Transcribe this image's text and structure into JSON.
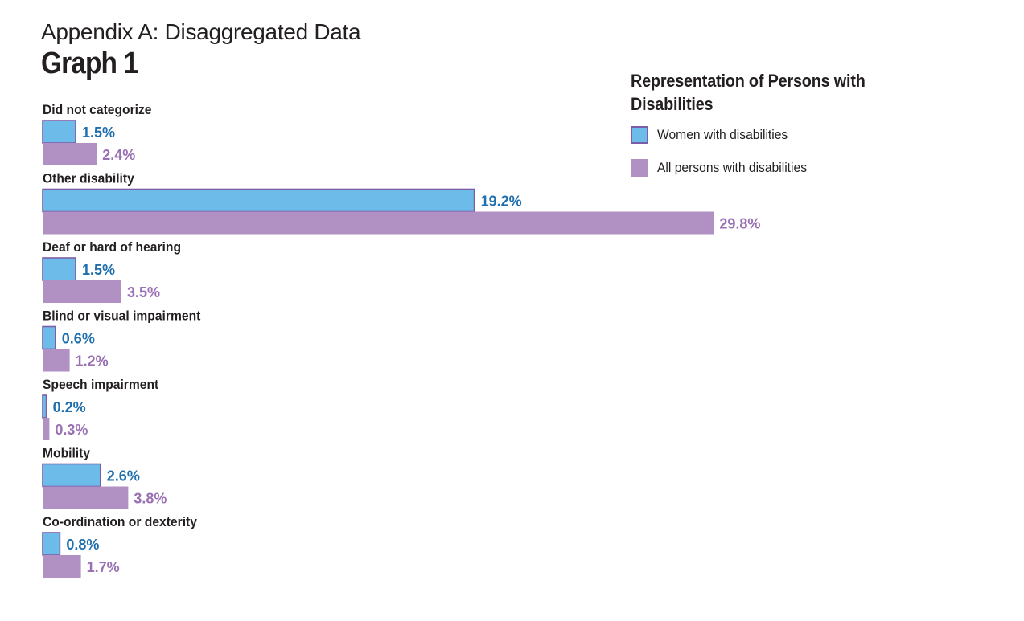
{
  "header": {
    "title": "Appendix A: Disaggregated Data",
    "subtitle": "Graph 1"
  },
  "legend": {
    "title": "Representation of Persons with Disabilities",
    "items": [
      {
        "label": "Women with disabilities",
        "color": "#6cbbe8",
        "border": "#7b5ea7"
      },
      {
        "label": "All persons with disabilities",
        "color": "#b190c4",
        "border": "#b190c4"
      }
    ]
  },
  "colors": {
    "women_fill": "#6cbbe8",
    "women_border": "#7b5ea7",
    "women_text": "#1f6fae",
    "all_fill": "#b190c4",
    "all_text": "#9a70b4",
    "category_text": "#231f20"
  },
  "chart_data": {
    "type": "bar",
    "orientation": "horizontal",
    "title": "Representation of Persons with Disabilities",
    "categories": [
      "Did not categorize",
      "Other disability",
      "Deaf or hard of hearing",
      "Blind or visual impairment",
      "Speech impairment",
      "Mobility",
      "Co-ordination or dexterity"
    ],
    "series": [
      {
        "name": "Women with disabilities",
        "values": [
          1.5,
          19.2,
          1.5,
          0.6,
          0.2,
          2.6,
          0.8
        ],
        "labels": [
          "1.5%",
          "19.2%",
          "1.5%",
          "0.6%",
          "0.2%",
          "2.6%",
          "0.8%"
        ]
      },
      {
        "name": "All persons with disabilities",
        "values": [
          2.4,
          29.8,
          3.5,
          1.2,
          0.3,
          3.8,
          1.7
        ],
        "labels": [
          "2.4%",
          "29.8%",
          "3.5%",
          "1.2%",
          "0.3%",
          "3.8%",
          "1.7%"
        ]
      }
    ],
    "unit": "%",
    "grid": false,
    "axes_visible": false,
    "legend_position": "top-right"
  }
}
